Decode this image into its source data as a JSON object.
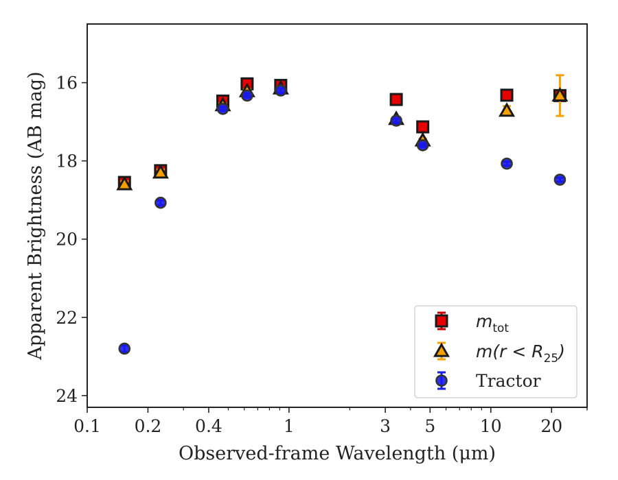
{
  "chart_data": {
    "type": "scatter",
    "title": "",
    "xlabel": "Observed-frame Wavelength (μm)",
    "ylabel": "Apparent Brightness (AB mag)",
    "x_scale": "log",
    "xlim": [
      0.1,
      30
    ],
    "ylim": [
      24.3,
      14.5
    ],
    "y_inverted": true,
    "grid": false,
    "legend_position": "lower-right",
    "x_ticks": [
      0.1,
      0.2,
      0.4,
      1,
      3,
      5,
      10,
      20
    ],
    "x_tick_labels": [
      "0.1",
      "0.2",
      "0.4",
      "1",
      "3",
      "5",
      "10",
      "20"
    ],
    "y_ticks": [
      16,
      18,
      20,
      22,
      24
    ],
    "y_tick_labels": [
      "16",
      "18",
      "20",
      "22",
      "24"
    ],
    "series": [
      {
        "name": "m_tot",
        "legend_label": "m",
        "legend_sub": "tot",
        "marker": "square",
        "color": "#e60000",
        "err_color": "#cc0000",
        "points": [
          {
            "x": 0.153,
            "y": 18.55,
            "err": 0.08
          },
          {
            "x": 0.231,
            "y": 18.25,
            "err": 0.08
          },
          {
            "x": 0.47,
            "y": 16.47,
            "err": 0.05
          },
          {
            "x": 0.62,
            "y": 16.03,
            "err": 0.05
          },
          {
            "x": 0.91,
            "y": 16.07,
            "err": 0.05
          },
          {
            "x": 3.4,
            "y": 16.43,
            "err": 0.05
          },
          {
            "x": 4.6,
            "y": 17.13,
            "err": 0.05
          },
          {
            "x": 12.0,
            "y": 16.32,
            "err": 0.05
          },
          {
            "x": 22.0,
            "y": 16.33,
            "err": 0.05
          }
        ]
      },
      {
        "name": "m(r < R25)",
        "legend_label": "m(r < R",
        "legend_sub": "25",
        "legend_close": ")",
        "marker": "triangle",
        "color": "#f5a000",
        "err_color": "#f5a000",
        "points": [
          {
            "x": 0.153,
            "y": 18.6,
            "err": 0.08
          },
          {
            "x": 0.231,
            "y": 18.3,
            "err": 0.08
          },
          {
            "x": 0.47,
            "y": 16.58,
            "err": 0.05
          },
          {
            "x": 0.62,
            "y": 16.22,
            "err": 0.05
          },
          {
            "x": 0.91,
            "y": 16.15,
            "err": 0.05
          },
          {
            "x": 3.4,
            "y": 16.93,
            "err": 0.05
          },
          {
            "x": 4.6,
            "y": 17.48,
            "err": 0.05
          },
          {
            "x": 12.0,
            "y": 16.72,
            "err": 0.12
          },
          {
            "x": 22.0,
            "y": 16.33,
            "err": 0.52
          }
        ]
      },
      {
        "name": "Tractor",
        "legend_label": "Tractor",
        "marker": "circle",
        "color": "#1a1aee",
        "err_color": "#1a1aee",
        "points": [
          {
            "x": 0.153,
            "y": 22.8,
            "err": 0.08
          },
          {
            "x": 0.231,
            "y": 19.07,
            "err": 0.06
          },
          {
            "x": 0.47,
            "y": 16.67,
            "err": 0.05
          },
          {
            "x": 0.62,
            "y": 16.33,
            "err": 0.05
          },
          {
            "x": 0.91,
            "y": 16.2,
            "err": 0.05
          },
          {
            "x": 3.4,
            "y": 16.97,
            "err": 0.05
          },
          {
            "x": 4.6,
            "y": 17.6,
            "err": 0.05
          },
          {
            "x": 12.0,
            "y": 18.07,
            "err": 0.05
          },
          {
            "x": 22.0,
            "y": 18.48,
            "err": 0.05
          }
        ]
      }
    ]
  }
}
